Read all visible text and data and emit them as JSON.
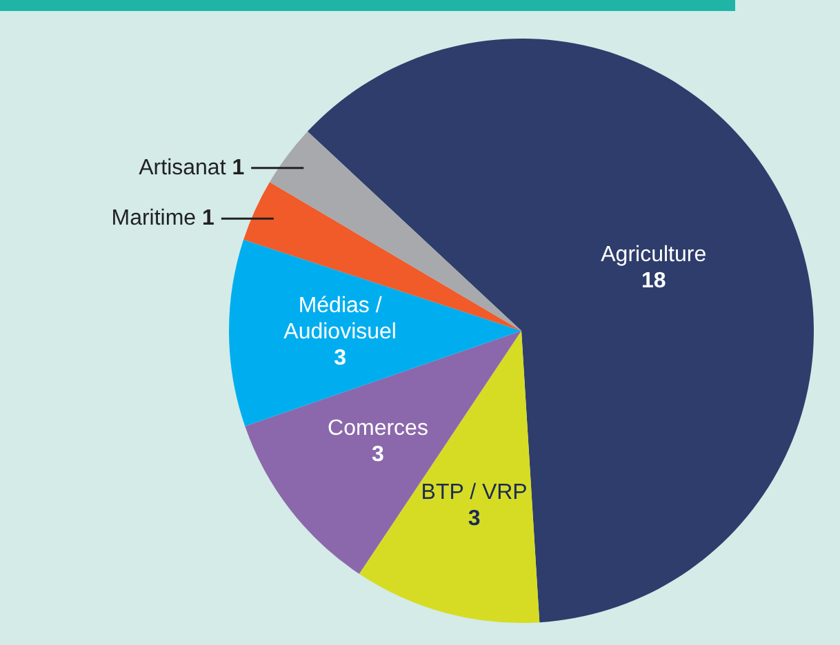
{
  "chart_data": {
    "type": "pie",
    "categories": [
      "Agriculture",
      "BTP / VRP",
      "Comerces",
      "Médias / Audiovisuel",
      "Maritime",
      "Artisanat"
    ],
    "values": [
      18,
      3,
      3,
      3,
      1,
      1
    ],
    "colors": [
      "#2e3d6b",
      "#d6dc24",
      "#8b68ab",
      "#00aeef",
      "#f15a29",
      "#a7a9ac"
    ],
    "data_labels": true,
    "legend": false
  }
}
